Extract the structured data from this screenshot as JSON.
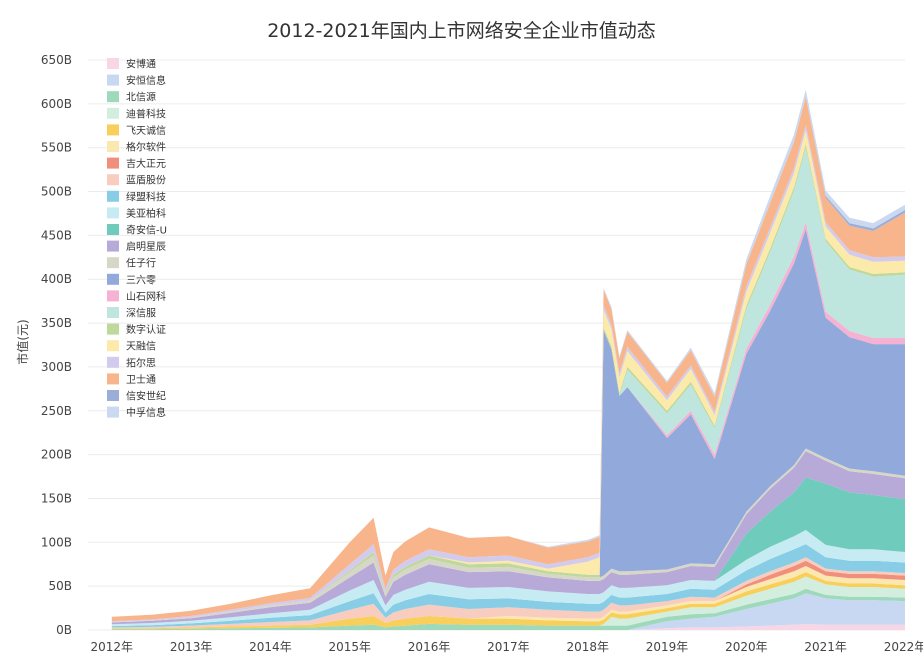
{
  "chart_data": {
    "type": "area",
    "stacked": true,
    "title": "2012-2021年国内上市网络安全企业市值动态",
    "xlabel": "",
    "ylabel": "市值(元)",
    "ylim": [
      0,
      650
    ],
    "y_ticks": [
      "0B",
      "50B",
      "100B",
      "150B",
      "200B",
      "250B",
      "300B",
      "350B",
      "400B",
      "450B",
      "500B",
      "550B",
      "600B",
      "650B"
    ],
    "x_ticks": [
      "2012年",
      "2013年",
      "2014年",
      "2015年",
      "2016年",
      "2017年",
      "2018年",
      "2019年",
      "2020年",
      "2021年",
      "2022年"
    ],
    "legend_position": "top-left",
    "grid": true,
    "x": [
      2012.0,
      2012.5,
      2013.0,
      2013.5,
      2014.0,
      2014.5,
      2015.0,
      2015.3,
      2015.45,
      2015.55,
      2015.7,
      2016.0,
      2016.5,
      2017.0,
      2017.5,
      2018.0,
      2018.15,
      2018.2,
      2018.3,
      2018.4,
      2018.5,
      2019.0,
      2019.3,
      2019.6,
      2020.0,
      2020.3,
      2020.6,
      2020.75,
      2021.0,
      2021.3,
      2021.6,
      2022.0
    ],
    "series": [
      {
        "name": "安博通",
        "color": "#f8d6e6",
        "values": [
          0,
          0,
          0,
          0,
          0,
          0,
          0,
          0,
          0,
          0,
          0,
          0,
          0,
          0,
          0,
          0,
          0,
          0,
          0,
          0,
          0,
          2,
          3,
          3,
          4,
          5,
          6,
          7,
          6,
          6,
          6,
          6
        ]
      },
      {
        "name": "安恒信息",
        "color": "#c8d8f2",
        "values": [
          0,
          0,
          0,
          0,
          0,
          0,
          0,
          0,
          0,
          0,
          0,
          0,
          0,
          0,
          0,
          0,
          0,
          0,
          0,
          0,
          0,
          8,
          10,
          12,
          20,
          25,
          30,
          35,
          30,
          28,
          28,
          27
        ]
      },
      {
        "name": "北信源",
        "color": "#9ed9bc",
        "values": [
          1,
          1,
          1.5,
          2,
          2.5,
          3,
          5,
          6,
          3,
          4,
          5,
          7,
          6,
          6,
          5,
          5,
          5,
          5,
          5,
          5,
          5,
          5,
          5,
          4,
          5,
          5,
          5,
          5,
          4,
          4,
          4,
          4
        ]
      },
      {
        "name": "迪普科技",
        "color": "#d3eedf",
        "values": [
          0,
          0,
          0,
          0,
          0,
          0,
          0,
          0,
          0,
          0,
          0,
          0,
          0,
          0,
          0,
          0,
          0,
          2,
          10,
          8,
          8,
          6,
          8,
          7,
          10,
          12,
          14,
          14,
          12,
          11,
          11,
          10
        ]
      },
      {
        "name": "飞天诚信",
        "color": "#f7cf5a",
        "values": [
          1,
          1,
          1.5,
          2,
          2.5,
          3,
          8,
          10,
          5,
          7,
          8,
          9,
          7,
          7,
          6,
          5,
          5,
          5,
          5,
          5,
          5,
          4,
          4,
          4,
          5,
          5,
          5,
          5,
          4,
          4,
          4,
          4
        ]
      },
      {
        "name": "格尔软件",
        "color": "#fbe7b0",
        "values": [
          0,
          0,
          0,
          0,
          0,
          0,
          0,
          0,
          0,
          0,
          0,
          0,
          0,
          3,
          3,
          3,
          3,
          3,
          3,
          3,
          3,
          3,
          3,
          3,
          5,
          6,
          7,
          7,
          6,
          6,
          6,
          6
        ]
      },
      {
        "name": "吉大正元",
        "color": "#f0907c",
        "values": [
          0,
          0,
          0,
          0,
          0,
          0,
          0,
          0,
          0,
          0,
          0,
          0,
          0,
          0,
          0,
          0,
          0,
          0,
          0,
          0,
          0,
          0,
          0,
          0,
          3,
          5,
          6,
          6,
          5,
          5,
          5,
          5
        ]
      },
      {
        "name": "蓝盾股份",
        "color": "#f8cdbf",
        "values": [
          1,
          1.5,
          2,
          3,
          4,
          5,
          10,
          14,
          6,
          9,
          11,
          13,
          11,
          10,
          9,
          8,
          8,
          8,
          8,
          7,
          7,
          5,
          5,
          4,
          4,
          4,
          4,
          4,
          3,
          3,
          3,
          3
        ]
      },
      {
        "name": "绿盟科技",
        "color": "#87cde6",
        "values": [
          1.5,
          2,
          2.5,
          3.5,
          5,
          6,
          10,
          12,
          6,
          9,
          10,
          12,
          11,
          10,
          9,
          9,
          9,
          9,
          9,
          9,
          9,
          8,
          9,
          9,
          12,
          14,
          15,
          15,
          13,
          12,
          12,
          12
        ]
      },
      {
        "name": "美亚柏科",
        "color": "#c7ebf3",
        "values": [
          2,
          2.5,
          3,
          4,
          5,
          6,
          12,
          15,
          8,
          11,
          12,
          14,
          13,
          13,
          12,
          11,
          11,
          11,
          11,
          11,
          11,
          10,
          10,
          10,
          12,
          14,
          15,
          16,
          14,
          13,
          13,
          12
        ]
      },
      {
        "name": "奇安信-U",
        "color": "#6fcbbc",
        "values": [
          0,
          0,
          0,
          0,
          0,
          0,
          0,
          0,
          0,
          0,
          0,
          0,
          0,
          0,
          0,
          0,
          0,
          0,
          0,
          0,
          0,
          0,
          0,
          0,
          30,
          40,
          50,
          60,
          70,
          65,
          62,
          60
        ]
      },
      {
        "name": "启明星辰",
        "color": "#b7a9d8",
        "values": [
          2,
          2.5,
          3,
          5,
          7,
          8,
          15,
          20,
          10,
          15,
          17,
          20,
          18,
          18,
          16,
          15,
          15,
          15,
          15,
          15,
          15,
          15,
          16,
          16,
          22,
          26,
          28,
          30,
          26,
          24,
          24,
          24
        ]
      },
      {
        "name": "任子行",
        "color": "#d7d7c8",
        "values": [
          0.5,
          0.5,
          1,
          1.5,
          2,
          2.5,
          6,
          8,
          3,
          5,
          6,
          6,
          5,
          5,
          4,
          4,
          4,
          4,
          4,
          4,
          4,
          3,
          3,
          3,
          3,
          3,
          3,
          3,
          3,
          3,
          3,
          3
        ]
      },
      {
        "name": "三六零",
        "color": "#92a9dc",
        "values": [
          0,
          0,
          0,
          0,
          0,
          0,
          0,
          0,
          0,
          0,
          0,
          0,
          0,
          0,
          0,
          0,
          0,
          280,
          250,
          200,
          210,
          150,
          170,
          120,
          180,
          200,
          230,
          250,
          160,
          150,
          145,
          150
        ]
      },
      {
        "name": "山石网科",
        "color": "#f6b2d2",
        "values": [
          0,
          0,
          0,
          0,
          0,
          0,
          0,
          0,
          0,
          0,
          0,
          0,
          0,
          0,
          0,
          0,
          0,
          0,
          0,
          0,
          0,
          3,
          4,
          5,
          6,
          7,
          8,
          8,
          7,
          7,
          7,
          7
        ]
      },
      {
        "name": "深信服",
        "color": "#bfe5df",
        "values": [
          0,
          0,
          0,
          0,
          0,
          0,
          0,
          0,
          0,
          0,
          0,
          0,
          0,
          0,
          0,
          0,
          0,
          0,
          0,
          0,
          20,
          25,
          30,
          30,
          45,
          60,
          75,
          85,
          80,
          70,
          70,
          72
        ]
      },
      {
        "name": "数字认证",
        "color": "#bfd89c",
        "values": [
          0,
          0,
          0,
          0,
          0,
          0,
          2,
          4,
          2,
          3,
          3,
          4,
          4,
          4,
          3,
          3,
          3,
          3,
          3,
          3,
          3,
          3,
          3,
          3,
          4,
          4,
          4,
          4,
          3,
          3,
          3,
          3
        ]
      },
      {
        "name": "天融信",
        "color": "#fbeaa9",
        "values": [
          0,
          0,
          0,
          0,
          0,
          0,
          0,
          0,
          0,
          0,
          0,
          0,
          2,
          3,
          3,
          15,
          20,
          20,
          20,
          18,
          18,
          12,
          15,
          12,
          16,
          18,
          16,
          16,
          14,
          14,
          14,
          13
        ]
      },
      {
        "name": "拓尔思",
        "color": "#d3cbed",
        "values": [
          1,
          1,
          1.5,
          2,
          2.5,
          3,
          7,
          9,
          4,
          6,
          7,
          7,
          6,
          6,
          5,
          5,
          5,
          5,
          5,
          5,
          5,
          4,
          4,
          4,
          6,
          6,
          6,
          6,
          5,
          5,
          5,
          5
        ]
      },
      {
        "name": "卫士通",
        "color": "#f8b58c",
        "values": [
          5,
          5.5,
          6,
          7,
          9,
          11,
          25,
          30,
          15,
          20,
          22,
          25,
          22,
          22,
          19,
          18,
          18,
          18,
          18,
          17,
          17,
          16,
          17,
          17,
          25,
          28,
          30,
          32,
          28,
          28,
          30,
          50
        ]
      },
      {
        "name": "信安世纪",
        "color": "#9aaed8",
        "values": [
          0,
          0,
          0,
          0,
          0,
          0,
          0,
          0,
          0,
          0,
          0,
          0,
          0,
          0,
          0,
          0,
          0,
          0,
          0,
          0,
          0,
          0,
          0,
          0,
          0,
          0,
          0,
          0,
          2,
          3,
          3,
          3
        ]
      },
      {
        "name": "中孚信息",
        "color": "#cad9f0",
        "values": [
          0,
          0,
          0,
          0,
          0,
          0,
          0,
          0,
          0,
          0,
          0,
          0,
          0,
          0,
          1,
          2,
          2,
          2,
          2,
          2,
          2,
          2,
          3,
          4,
          6,
          8,
          8,
          8,
          6,
          6,
          6,
          6
        ]
      }
    ]
  }
}
